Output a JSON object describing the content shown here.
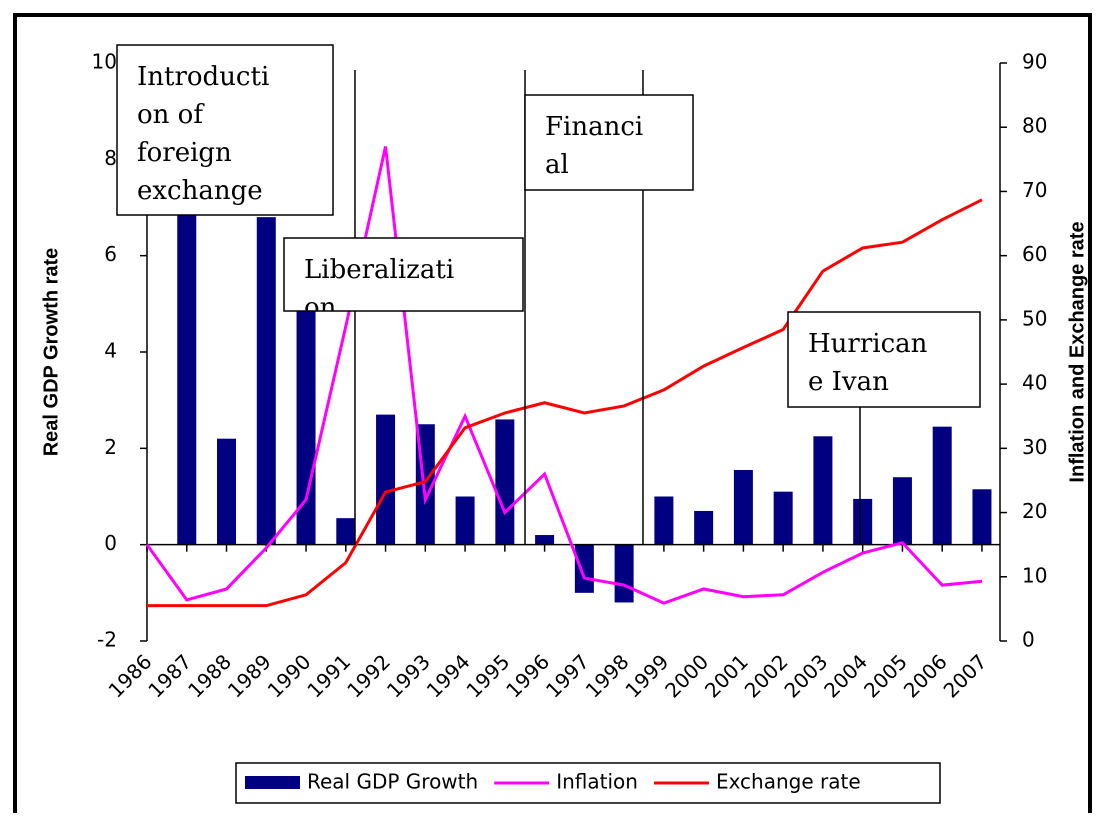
{
  "chart_data": {
    "type": "bar-line",
    "y_label": "Real GDP Growth rate",
    "y2_label": "Inflation and Exchange rate",
    "categories": [
      "1986",
      "1987",
      "1988",
      "1989",
      "1990",
      "1991",
      "1992",
      "1993",
      "1994",
      "1995",
      "1996",
      "1997",
      "1998",
      "1999",
      "2000",
      "2001",
      "2002",
      "2003",
      "2004",
      "2005",
      "2006",
      "2007"
    ],
    "series": [
      {
        "name": "Real GDP Growth",
        "type": "bar",
        "color": "#000080",
        "values": [
          null,
          7.0,
          2.2,
          6.8,
          5.0,
          0.55,
          2.7,
          2.5,
          1.0,
          2.6,
          0.2,
          -1.0,
          -1.2,
          1.0,
          0.7,
          1.55,
          1.1,
          2.25,
          0.95,
          1.4,
          2.45,
          1.15
        ]
      },
      {
        "name": "Inflation",
        "type": "line",
        "axis": "y2",
        "color": "#ff00ff",
        "values": [
          15,
          6.4,
          8.1,
          14.5,
          22,
          49,
          77,
          22,
          35,
          20,
          26,
          9.8,
          8.7,
          5.9,
          8.1,
          6.9,
          7.2,
          10.7,
          13.7,
          15.3,
          8.7,
          9.3
        ]
      },
      {
        "name": "Exchange rate",
        "type": "line",
        "axis": "y2",
        "color": "#ff0000",
        "values": [
          5.5,
          5.5,
          5.5,
          5.5,
          7.2,
          12.2,
          23.2,
          24.8,
          33.2,
          35.5,
          37.1,
          35.5,
          36.6,
          39.1,
          42.8,
          45.7,
          48.5,
          57.6,
          61.2,
          62.1,
          65.6,
          68.7
        ]
      }
    ],
    "ylim": [
      -2,
      10
    ],
    "yticks": [
      -2,
      0,
      2,
      4,
      6,
      8,
      10
    ],
    "y2lim": [
      0,
      90
    ],
    "y2ticks": [
      0,
      10,
      20,
      30,
      40,
      50,
      60,
      70,
      80,
      90
    ],
    "grid": false,
    "legend": "bottom",
    "annotations": [
      {
        "lines": [
          "Introducti",
          "on of",
          "foreign",
          "exchange"
        ]
      },
      {
        "lines": [
          "Liberalizati",
          "on"
        ]
      },
      {
        "lines": [
          "Financi",
          "al"
        ]
      },
      {
        "lines": [
          "Hurrican",
          "e Ivan"
        ]
      }
    ]
  }
}
